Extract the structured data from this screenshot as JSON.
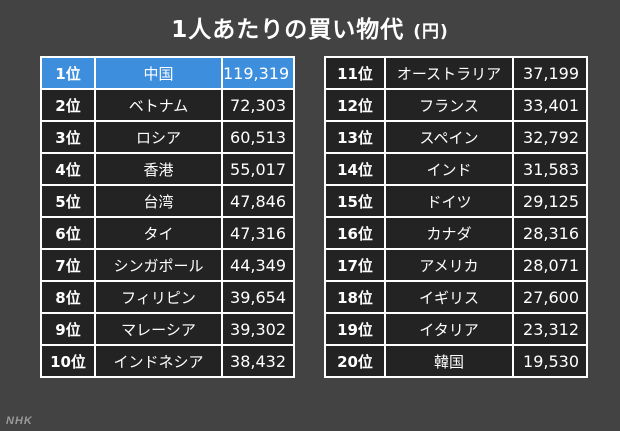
{
  "title": {
    "main": "1人あたりの買い物代",
    "unit": "(円)"
  },
  "left_table": [
    {
      "rank": "1位",
      "name": "中国",
      "value": "119,319",
      "highlight": true
    },
    {
      "rank": "2位",
      "name": "ベトナム",
      "value": "72,303",
      "highlight": false
    },
    {
      "rank": "3位",
      "name": "ロシア",
      "value": "60,513",
      "highlight": false
    },
    {
      "rank": "4位",
      "name": "香港",
      "value": "55,017",
      "highlight": false
    },
    {
      "rank": "5位",
      "name": "台湾",
      "value": "47,846",
      "highlight": false
    },
    {
      "rank": "6位",
      "name": "タイ",
      "value": "47,316",
      "highlight": false
    },
    {
      "rank": "7位",
      "name": "シンガポール",
      "value": "44,349",
      "highlight": false
    },
    {
      "rank": "8位",
      "name": "フィリピン",
      "value": "39,654",
      "highlight": false
    },
    {
      "rank": "9位",
      "name": "マレーシア",
      "value": "39,302",
      "highlight": false
    },
    {
      "rank": "10位",
      "name": "インドネシア",
      "value": "38,432",
      "highlight": false
    }
  ],
  "right_table": [
    {
      "rank": "11位",
      "name": "オーストラリア",
      "value": "37,199",
      "highlight": false
    },
    {
      "rank": "12位",
      "name": "フランス",
      "value": "33,401",
      "highlight": false
    },
    {
      "rank": "13位",
      "name": "スペイン",
      "value": "32,792",
      "highlight": false
    },
    {
      "rank": "14位",
      "name": "インド",
      "value": "31,583",
      "highlight": false
    },
    {
      "rank": "15位",
      "name": "ドイツ",
      "value": "29,125",
      "highlight": false
    },
    {
      "rank": "16位",
      "name": "カナダ",
      "value": "28,316",
      "highlight": false
    },
    {
      "rank": "17位",
      "name": "アメリカ",
      "value": "28,071",
      "highlight": false
    },
    {
      "rank": "18位",
      "name": "イギリス",
      "value": "27,600",
      "highlight": false
    },
    {
      "rank": "19位",
      "name": "イタリア",
      "value": "23,312",
      "highlight": false
    },
    {
      "rank": "20位",
      "name": "韓国",
      "value": "19,530",
      "highlight": false
    }
  ],
  "colors": {
    "background": "#434343",
    "table_bg": "#232323",
    "highlight": "#3d8fde",
    "border": "#ffffff"
  },
  "logo": "NHK"
}
